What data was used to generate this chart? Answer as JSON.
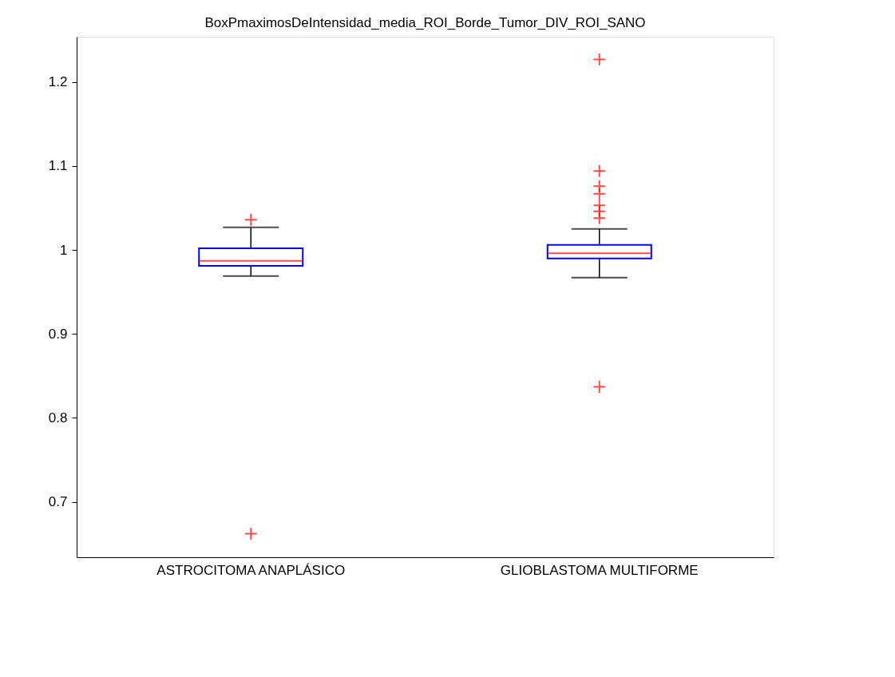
{
  "chart_data": {
    "type": "box",
    "title": "BoxPmaximosDeIntensidad_media_ROI_Borde_Tumor_DIV_ROI_SANO",
    "categories": [
      "ASTROCITOMA ANAPLÁSICO",
      "GLIOBLASTOMA MULTIFORME"
    ],
    "boxes": [
      {
        "low": 0.969,
        "q1": 0.981,
        "median": 0.987,
        "q3": 1.002,
        "high": 1.027,
        "outliers": [
          1.036,
          0.662
        ]
      },
      {
        "low": 0.967,
        "q1": 0.99,
        "median": 0.996,
        "q3": 1.006,
        "high": 1.025,
        "outliers": [
          1.227,
          1.094,
          1.076,
          1.067,
          1.053,
          1.046,
          1.038,
          0.837
        ]
      }
    ],
    "ylim": [
      0.634,
      1.254
    ],
    "yticks": [
      0.7,
      0.8,
      0.9,
      1,
      1.1,
      1.2
    ],
    "grid": false,
    "marker": "cross"
  }
}
